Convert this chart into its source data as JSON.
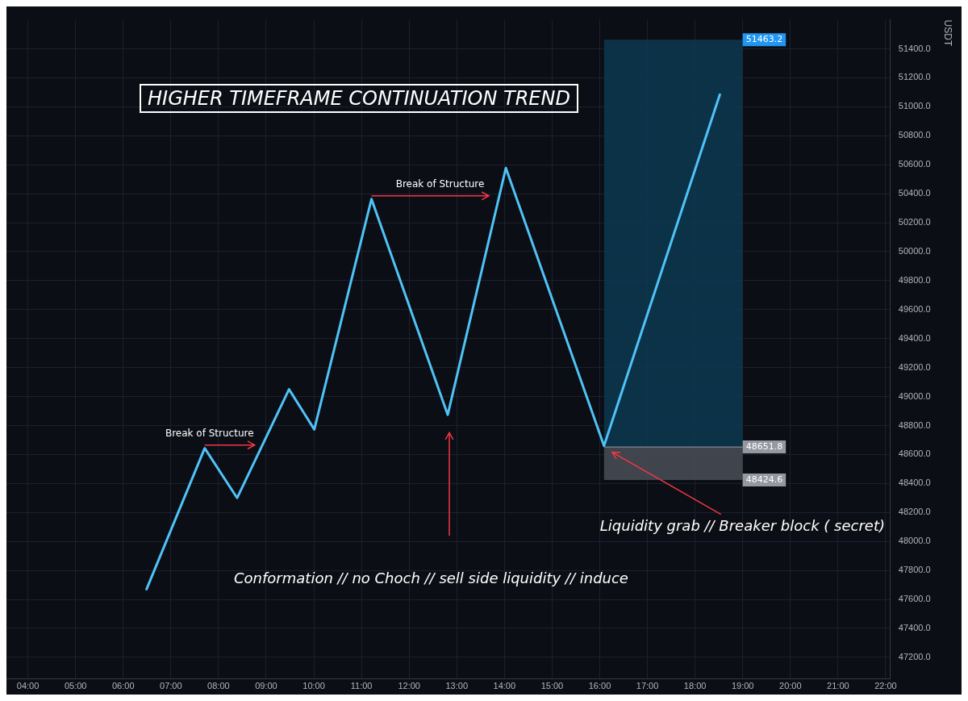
{
  "chart_data": {
    "type": "line",
    "title": "HIGHER TIMEFRAME CONTINUATION TREND",
    "ylabel": "USDT",
    "x": [
      6.49,
      7.71,
      8.39,
      9.48,
      10.01,
      11.21,
      12.81,
      14.03,
      16.09,
      18.52
    ],
    "series": [
      {
        "color": "#4fc3f7",
        "values": [
          47670,
          48643,
          48300,
          49050,
          48773,
          50363,
          48874,
          50577,
          48660,
          51084
        ]
      }
    ],
    "xlim": [
      3.55,
      22.1
    ],
    "xticks": [
      {
        "value": 4,
        "label": "04:00"
      },
      {
        "value": 5,
        "label": "05:00"
      },
      {
        "value": 6,
        "label": "06:00"
      },
      {
        "value": 7,
        "label": "07:00"
      },
      {
        "value": 8,
        "label": "08:00"
      },
      {
        "value": 9,
        "label": "09:00"
      },
      {
        "value": 10,
        "label": "10:00"
      },
      {
        "value": 11,
        "label": "11:00"
      },
      {
        "value": 12,
        "label": "12:00"
      },
      {
        "value": 13,
        "label": "13:00"
      },
      {
        "value": 14,
        "label": "14:00"
      },
      {
        "value": 15,
        "label": "15:00"
      },
      {
        "value": 16,
        "label": "16:00"
      },
      {
        "value": 17,
        "label": "17:00"
      },
      {
        "value": 18,
        "label": "18:00"
      },
      {
        "value": 19,
        "label": "19:00"
      },
      {
        "value": 20,
        "label": "20:00"
      },
      {
        "value": 21,
        "label": "21:00"
      },
      {
        "value": 22,
        "label": "22:00"
      }
    ],
    "ylim": [
      47050,
      51600
    ],
    "yticks": [
      {
        "value": 47200,
        "label": "47200.0"
      },
      {
        "value": 47400,
        "label": "47400.0"
      },
      {
        "value": 47600,
        "label": "47600.0"
      },
      {
        "value": 47800,
        "label": "47800.0"
      },
      {
        "value": 48000,
        "label": "48000.0"
      },
      {
        "value": 48200,
        "label": "48200.0"
      },
      {
        "value": 48400,
        "label": "48400.0"
      },
      {
        "value": 48600,
        "label": "48600.0"
      },
      {
        "value": 48800,
        "label": "48800.0"
      },
      {
        "value": 49000,
        "label": "49000.0"
      },
      {
        "value": 49200,
        "label": "49200.0"
      },
      {
        "value": 49400,
        "label": "49400.0"
      },
      {
        "value": 49600,
        "label": "49600.0"
      },
      {
        "value": 49800,
        "label": "49800.0"
      },
      {
        "value": 50000,
        "label": "50000.0"
      },
      {
        "value": 50200,
        "label": "50200.0"
      },
      {
        "value": 50400,
        "label": "50400.0"
      },
      {
        "value": 50600,
        "label": "50600.0"
      },
      {
        "value": 50800,
        "label": "50800.0"
      },
      {
        "value": 51000,
        "label": "51000.0"
      },
      {
        "value": 51200,
        "label": "51200.0"
      },
      {
        "value": 51400,
        "label": "51400.0"
      }
    ],
    "bands": [
      {
        "axis": "y",
        "from": 48651.8,
        "to": 51463.2,
        "color": "#0d3850",
        "label": "51463.2"
      },
      {
        "axis": "y",
        "from": 48424.6,
        "to": 48651.8,
        "color": "#4a4e57",
        "label": "48424.6"
      }
    ],
    "ref_lines": [
      {
        "axis": "y",
        "value": 48651.8,
        "label": "48651.8",
        "color": "#9598a1"
      }
    ],
    "annotations": [
      {
        "text": "Break of Structure",
        "x": 7.71,
        "y": 48643
      },
      {
        "text": "Break of Structure",
        "x": 11.21,
        "y": 50363
      },
      "Conformation // no Choch // sell side liquidity // induce",
      "Liquidity grab // Breaker block ( secret)"
    ],
    "grid": true,
    "legend": false,
    "marker": "none",
    "line_style": "solid"
  }
}
